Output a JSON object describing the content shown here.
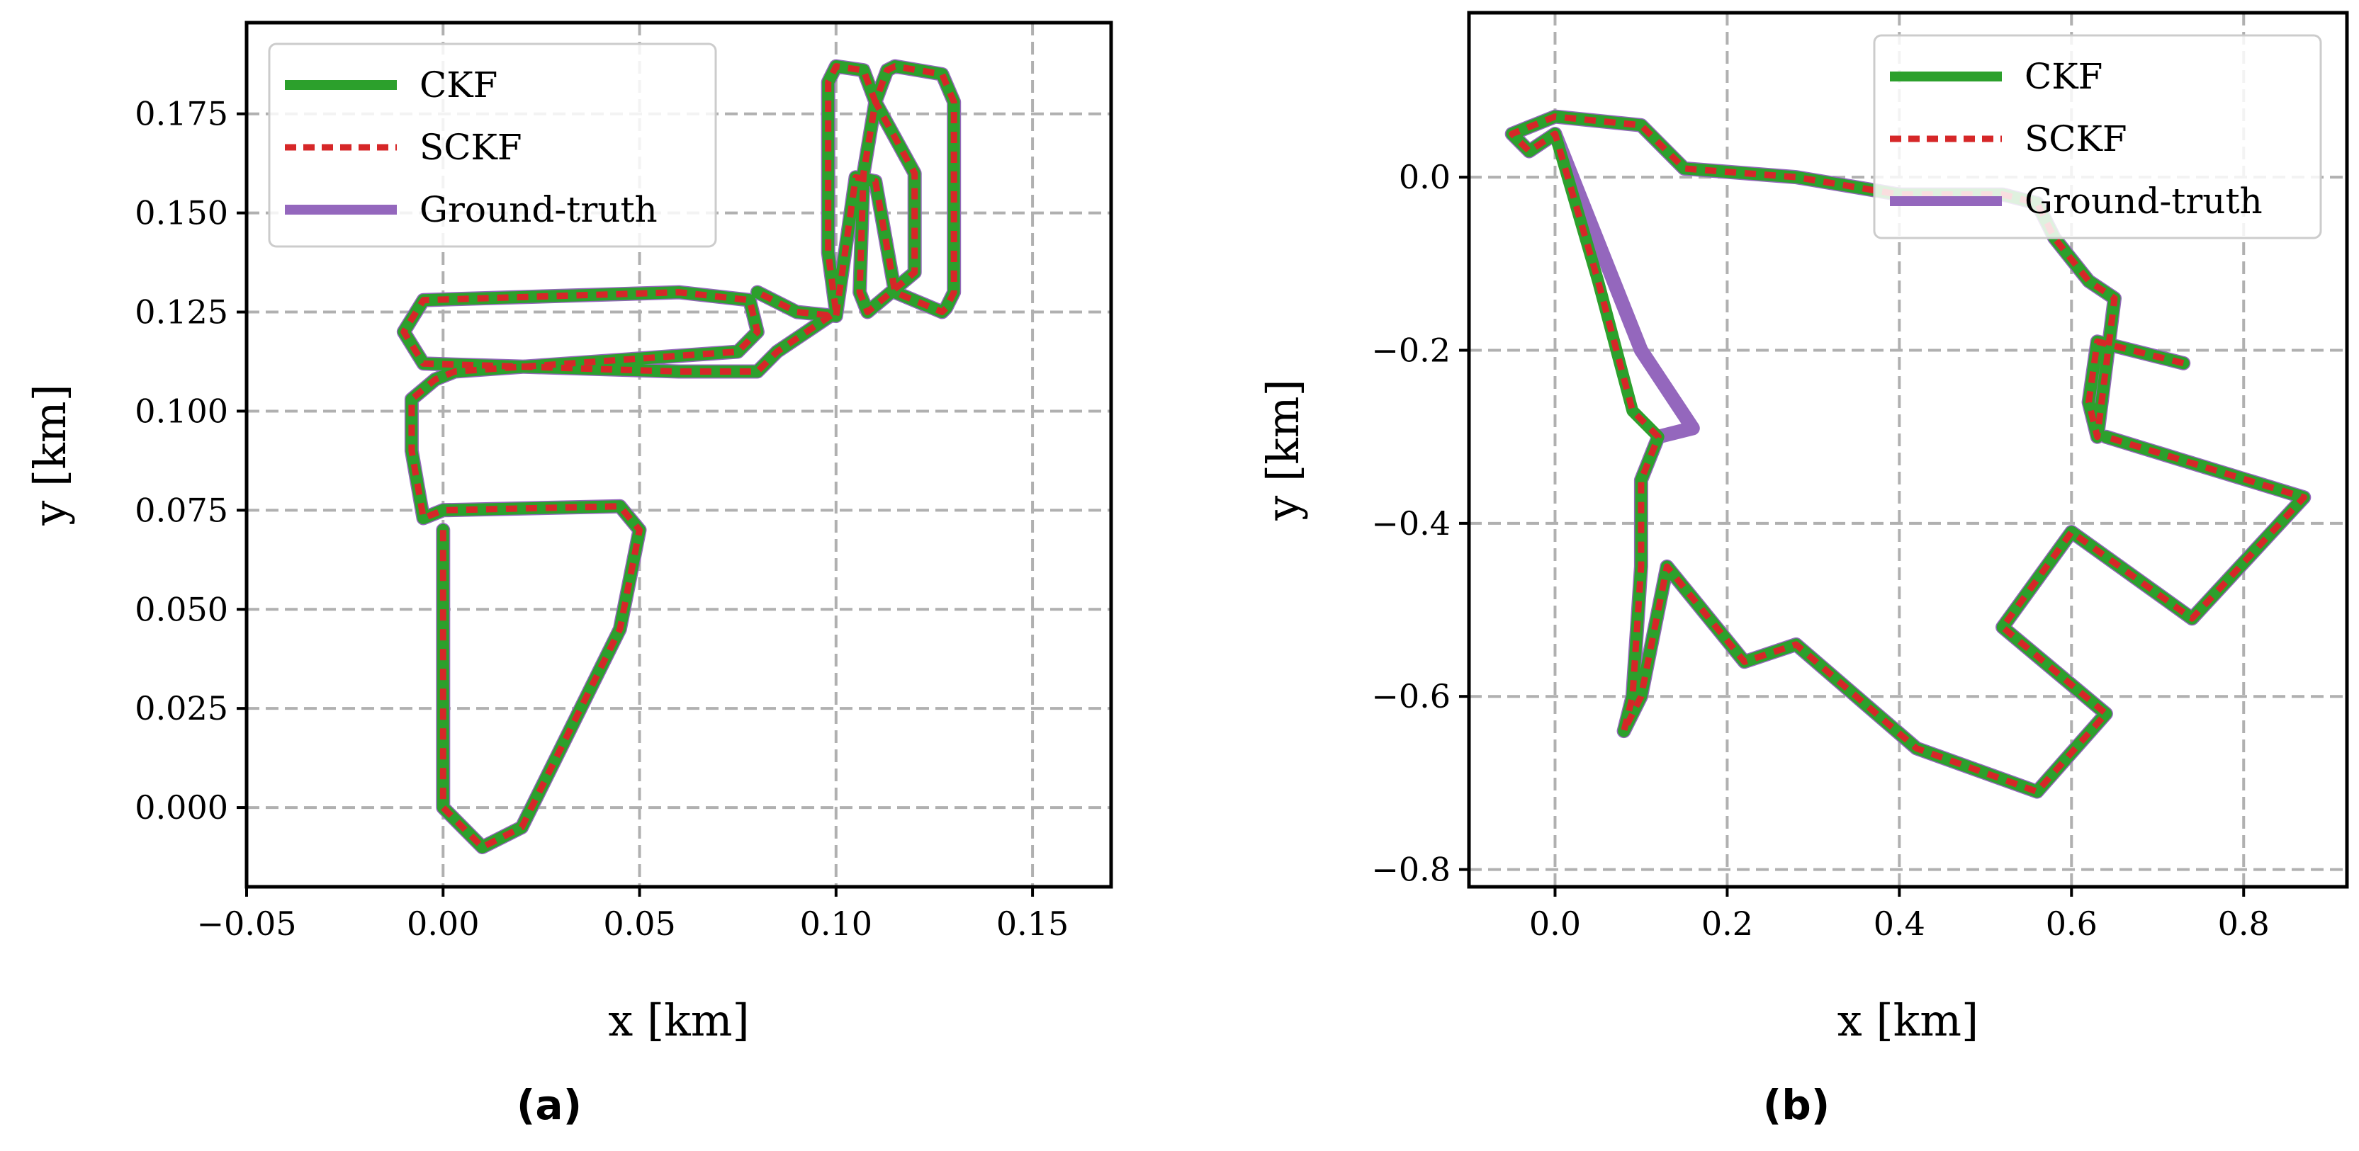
{
  "chart_data": [
    {
      "type": "line",
      "panel_label": "(a)",
      "xlabel": "x [km]",
      "ylabel": "y [km]",
      "xlim": [
        -0.05,
        0.17
      ],
      "ylim": [
        -0.02,
        0.198
      ],
      "xticks": [
        -0.05,
        0.0,
        0.05,
        0.1,
        0.15
      ],
      "xtick_labels": [
        "−0.05",
        "0.00",
        "0.05",
        "0.10",
        "0.15"
      ],
      "yticks": [
        0.0,
        0.025,
        0.05,
        0.075,
        0.1,
        0.125,
        0.15,
        0.175
      ],
      "ytick_labels": [
        "0.000",
        "0.025",
        "0.050",
        "0.075",
        "0.100",
        "0.125",
        "0.150",
        "0.175"
      ],
      "grid": true,
      "legend_position": "top-left",
      "series": [
        {
          "name": "Ground-truth",
          "color": "#9467bd",
          "style": "solid",
          "x": [
            0.0,
            0.0,
            0.01,
            0.02,
            0.045,
            0.05,
            0.045,
            0.0,
            -0.005,
            -0.008,
            -0.008,
            -0.002,
            0.003,
            0.075,
            0.08,
            0.078,
            0.06,
            -0.005,
            -0.01,
            -0.005,
            0.06,
            0.08,
            0.085,
            0.1,
            0.098,
            0.098,
            0.1,
            0.107,
            0.11,
            0.107,
            0.106,
            0.108,
            0.12,
            0.12,
            0.11,
            0.113,
            0.115,
            0.127,
            0.13,
            0.13,
            0.128,
            0.127,
            0.115,
            0.11,
            0.105,
            0.1,
            0.09,
            0.08
          ],
          "y": [
            0.07,
            0.0,
            -0.01,
            -0.005,
            0.045,
            0.07,
            0.076,
            0.075,
            0.073,
            0.09,
            0.103,
            0.108,
            0.11,
            0.115,
            0.12,
            0.128,
            0.13,
            0.128,
            0.12,
            0.112,
            0.11,
            0.11,
            0.115,
            0.125,
            0.14,
            0.183,
            0.187,
            0.186,
            0.178,
            0.16,
            0.13,
            0.125,
            0.135,
            0.16,
            0.178,
            0.186,
            0.187,
            0.185,
            0.178,
            0.13,
            0.126,
            0.125,
            0.13,
            0.158,
            0.159,
            0.124,
            0.125,
            0.13
          ]
        },
        {
          "name": "CKF",
          "color": "#2ca02c",
          "style": "solid",
          "x": [
            0.0,
            0.0,
            0.01,
            0.02,
            0.045,
            0.05,
            0.045,
            0.0,
            -0.005,
            -0.008,
            -0.008,
            -0.002,
            0.003,
            0.075,
            0.08,
            0.078,
            0.06,
            -0.005,
            -0.01,
            -0.005,
            0.06,
            0.08,
            0.085,
            0.1,
            0.098,
            0.098,
            0.1,
            0.107,
            0.11,
            0.107,
            0.106,
            0.108,
            0.12,
            0.12,
            0.11,
            0.113,
            0.115,
            0.127,
            0.13,
            0.13,
            0.128,
            0.127,
            0.115,
            0.11,
            0.105,
            0.1,
            0.09,
            0.08
          ],
          "y": [
            0.07,
            0.0,
            -0.01,
            -0.005,
            0.045,
            0.07,
            0.076,
            0.075,
            0.073,
            0.09,
            0.103,
            0.108,
            0.11,
            0.115,
            0.12,
            0.128,
            0.13,
            0.128,
            0.12,
            0.112,
            0.11,
            0.11,
            0.115,
            0.125,
            0.14,
            0.183,
            0.187,
            0.186,
            0.178,
            0.16,
            0.13,
            0.125,
            0.135,
            0.16,
            0.178,
            0.186,
            0.187,
            0.185,
            0.178,
            0.13,
            0.126,
            0.125,
            0.13,
            0.158,
            0.159,
            0.124,
            0.125,
            0.13
          ]
        },
        {
          "name": "SCKF",
          "color": "#d62728",
          "style": "dashed",
          "x": [
            0.0,
            0.0,
            0.01,
            0.02,
            0.045,
            0.05,
            0.045,
            0.0,
            -0.005,
            -0.008,
            -0.008,
            -0.002,
            0.003,
            0.075,
            0.08,
            0.078,
            0.06,
            -0.005,
            -0.01,
            -0.005,
            0.06,
            0.08,
            0.085,
            0.1,
            0.098,
            0.098,
            0.1,
            0.107,
            0.11,
            0.107,
            0.106,
            0.108,
            0.12,
            0.12,
            0.11,
            0.113,
            0.115,
            0.127,
            0.13,
            0.13,
            0.128,
            0.127,
            0.115,
            0.11,
            0.105,
            0.1,
            0.09,
            0.08
          ],
          "y": [
            0.07,
            0.0,
            -0.01,
            -0.005,
            0.045,
            0.07,
            0.076,
            0.075,
            0.073,
            0.09,
            0.103,
            0.108,
            0.11,
            0.115,
            0.12,
            0.128,
            0.13,
            0.128,
            0.12,
            0.112,
            0.11,
            0.11,
            0.115,
            0.125,
            0.14,
            0.183,
            0.187,
            0.186,
            0.178,
            0.16,
            0.13,
            0.125,
            0.135,
            0.16,
            0.178,
            0.186,
            0.187,
            0.185,
            0.178,
            0.13,
            0.126,
            0.125,
            0.13,
            0.158,
            0.159,
            0.124,
            0.125,
            0.13
          ]
        }
      ]
    },
    {
      "type": "line",
      "panel_label": "(b)",
      "xlabel": "x [km]",
      "ylabel": "y [km]",
      "xlim": [
        -0.1,
        0.92
      ],
      "ylim": [
        -0.82,
        0.19
      ],
      "xticks": [
        0.0,
        0.2,
        0.4,
        0.6,
        0.8
      ],
      "xtick_labels": [
        "0.0",
        "0.2",
        "0.4",
        "0.6",
        "0.8"
      ],
      "yticks": [
        -0.8,
        -0.6,
        -0.4,
        -0.2,
        0.0
      ],
      "ytick_labels": [
        "−0.8",
        "−0.6",
        "−0.4",
        "−0.2",
        "0.0"
      ],
      "grid": true,
      "legend_position": "top-right",
      "series": [
        {
          "name": "Ground-truth",
          "color": "#9467bd",
          "style": "solid",
          "x": [
            0.73,
            0.63,
            0.62,
            0.63,
            0.65,
            0.62,
            0.58,
            0.56,
            0.52,
            0.4,
            0.28,
            0.15,
            0.1,
            0.0,
            -0.05,
            -0.03,
            0.0,
            0.1,
            0.16,
            0.12,
            0.1,
            0.1,
            0.09,
            0.08,
            0.1,
            0.13,
            0.22,
            0.28,
            0.42,
            0.56,
            0.64,
            0.52,
            0.6,
            0.74,
            0.87,
            0.64
          ],
          "y": [
            -0.215,
            -0.19,
            -0.26,
            -0.3,
            -0.14,
            -0.12,
            -0.07,
            -0.03,
            -0.02,
            -0.02,
            0.0,
            0.01,
            0.06,
            0.07,
            0.05,
            0.03,
            0.05,
            -0.2,
            -0.29,
            -0.3,
            -0.35,
            -0.45,
            -0.6,
            -0.64,
            -0.6,
            -0.45,
            -0.56,
            -0.54,
            -0.66,
            -0.71,
            -0.62,
            -0.52,
            -0.41,
            -0.51,
            -0.37,
            -0.3
          ]
        },
        {
          "name": "CKF",
          "color": "#2ca02c",
          "style": "solid",
          "x": [
            0.73,
            0.63,
            0.62,
            0.63,
            0.65,
            0.62,
            0.58,
            0.56,
            0.52,
            0.4,
            0.28,
            0.15,
            0.1,
            0.0,
            -0.05,
            -0.03,
            0.0,
            0.05,
            0.09,
            0.12,
            0.1,
            0.1,
            0.09,
            0.08,
            0.1,
            0.13,
            0.22,
            0.28,
            0.42,
            0.56,
            0.64,
            0.52,
            0.6,
            0.74,
            0.87,
            0.64
          ],
          "y": [
            -0.215,
            -0.19,
            -0.26,
            -0.3,
            -0.14,
            -0.12,
            -0.07,
            -0.03,
            -0.02,
            -0.02,
            0.0,
            0.01,
            0.06,
            0.07,
            0.05,
            0.03,
            0.05,
            -0.12,
            -0.27,
            -0.3,
            -0.35,
            -0.45,
            -0.6,
            -0.64,
            -0.6,
            -0.45,
            -0.56,
            -0.54,
            -0.66,
            -0.71,
            -0.62,
            -0.52,
            -0.41,
            -0.51,
            -0.37,
            -0.3
          ]
        },
        {
          "name": "SCKF",
          "color": "#d62728",
          "style": "dashed",
          "x": [
            0.73,
            0.63,
            0.62,
            0.63,
            0.65,
            0.62,
            0.58,
            0.56,
            0.52,
            0.4,
            0.28,
            0.15,
            0.1,
            0.0,
            -0.05,
            -0.03,
            0.0,
            0.05,
            0.09,
            0.12,
            0.1,
            0.1,
            0.09,
            0.08,
            0.1,
            0.13,
            0.22,
            0.28,
            0.42,
            0.56,
            0.64,
            0.52,
            0.6,
            0.74,
            0.87,
            0.64
          ],
          "y": [
            -0.215,
            -0.19,
            -0.26,
            -0.3,
            -0.14,
            -0.12,
            -0.07,
            -0.03,
            -0.02,
            -0.02,
            0.0,
            0.01,
            0.06,
            0.07,
            0.05,
            0.03,
            0.05,
            -0.12,
            -0.27,
            -0.3,
            -0.35,
            -0.45,
            -0.6,
            -0.64,
            -0.6,
            -0.45,
            -0.56,
            -0.54,
            -0.66,
            -0.71,
            -0.62,
            -0.52,
            -0.41,
            -0.51,
            -0.37,
            -0.3
          ]
        }
      ]
    }
  ]
}
